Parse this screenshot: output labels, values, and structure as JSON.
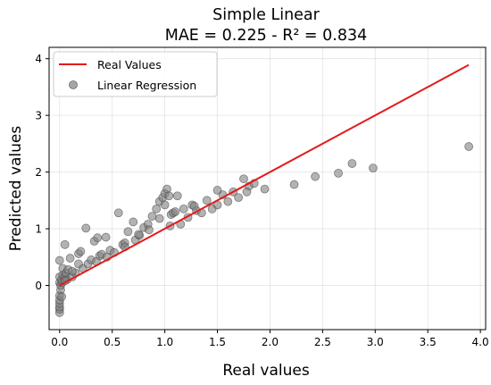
{
  "chart_data": {
    "type": "scatter",
    "title": [
      "Simple Linear",
      "MAE = 0.225 - R² = 0.834"
    ],
    "xlabel": "Real values",
    "ylabel": "Predicted values",
    "xlim": [
      -0.1,
      4.05
    ],
    "ylim": [
      -0.78,
      4.2
    ],
    "xticks": [
      0.0,
      0.5,
      1.0,
      1.5,
      2.0,
      2.5,
      3.0,
      3.5,
      4.0
    ],
    "xtick_labels": [
      "0.0",
      "0.5",
      "1.0",
      "1.5",
      "2.0",
      "2.5",
      "3.0",
      "3.5",
      "4.0"
    ],
    "yticks": [
      0,
      1,
      2,
      3,
      4
    ],
    "ytick_labels": [
      "0",
      "1",
      "2",
      "3",
      "4"
    ],
    "grid": true,
    "legend": {
      "placement": "top-left",
      "entries": [
        {
          "label": "Real Values",
          "kind": "line",
          "color": "#e31a1c"
        },
        {
          "label": "Linear Regression",
          "kind": "marker",
          "color": "#808080"
        }
      ]
    },
    "series": [
      {
        "name": "Real Values",
        "type": "line",
        "color": "#e31a1c",
        "x": [
          0.0,
          3.89
        ],
        "y": [
          0.0,
          3.89
        ]
      },
      {
        "name": "Linear Regression",
        "type": "scatter",
        "color": "#808080",
        "x": [
          0.0,
          0.0,
          0.0,
          0.0,
          0.0,
          0.0,
          0.0,
          0.0,
          0.0,
          0.01,
          0.01,
          0.02,
          0.02,
          0.03,
          0.03,
          0.05,
          0.05,
          0.06,
          0.07,
          0.08,
          0.1,
          0.12,
          0.15,
          0.18,
          0.2,
          0.22,
          0.25,
          0.27,
          0.3,
          0.33,
          0.36,
          0.38,
          0.4,
          0.44,
          0.48,
          0.52,
          0.56,
          0.6,
          0.62,
          0.65,
          0.7,
          0.72,
          0.76,
          0.8,
          0.84,
          0.88,
          0.92,
          0.95,
          0.98,
          1.0,
          1.02,
          1.04,
          1.05,
          1.06,
          1.08,
          1.1,
          1.15,
          1.18,
          1.22,
          1.26,
          1.3,
          1.35,
          1.4,
          1.45,
          1.5,
          1.55,
          1.6,
          1.65,
          1.7,
          1.75,
          1.8,
          1.85,
          1.95,
          2.23,
          2.43,
          2.65,
          2.78,
          2.98,
          3.89,
          0.02,
          0.05,
          0.12,
          0.18,
          0.35,
          0.45,
          0.62,
          0.75,
          0.85,
          0.95,
          1.0,
          1.12,
          1.28,
          1.5,
          1.78
        ],
        "y": [
          -0.48,
          -0.42,
          -0.38,
          -0.32,
          -0.26,
          -0.18,
          0.05,
          0.15,
          0.44,
          -0.08,
          0.0,
          0.05,
          0.1,
          0.18,
          0.3,
          0.72,
          0.15,
          0.22,
          0.1,
          0.28,
          0.48,
          0.15,
          0.22,
          0.56,
          0.6,
          0.3,
          1.01,
          0.38,
          0.45,
          0.78,
          0.84,
          0.52,
          0.55,
          0.85,
          0.62,
          0.58,
          1.28,
          0.72,
          0.75,
          0.95,
          1.12,
          0.8,
          0.88,
          1.02,
          1.08,
          1.22,
          1.35,
          1.48,
          1.55,
          1.62,
          1.7,
          1.58,
          1.05,
          1.25,
          1.28,
          1.3,
          1.08,
          1.35,
          1.2,
          1.42,
          1.32,
          1.28,
          1.5,
          1.35,
          1.42,
          1.6,
          1.48,
          1.65,
          1.55,
          1.88,
          1.75,
          1.8,
          1.7,
          1.78,
          1.92,
          1.98,
          2.15,
          2.07,
          2.45,
          -0.2,
          0.08,
          0.25,
          0.38,
          0.42,
          0.5,
          0.68,
          0.9,
          0.98,
          1.18,
          1.42,
          1.58,
          1.4,
          1.68,
          1.65
        ]
      }
    ]
  }
}
